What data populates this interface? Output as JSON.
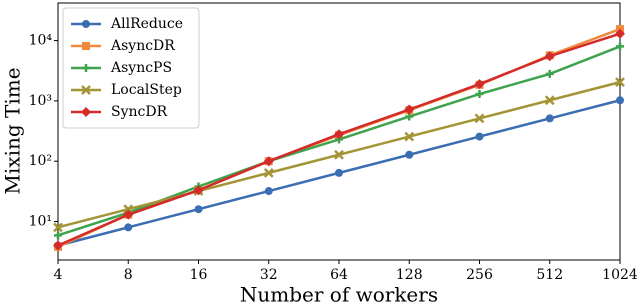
{
  "chart_data": {
    "type": "line",
    "x_label": "Number of workers",
    "y_label": "Mixing Time",
    "x": [
      4,
      8,
      16,
      32,
      64,
      128,
      256,
      512,
      1024
    ],
    "xlim": [
      4,
      1024
    ],
    "xticks": [
      4,
      8,
      16,
      32,
      64,
      128,
      256,
      512,
      1024
    ],
    "xscale": "log",
    "ylim": [
      2.3,
      42000
    ],
    "yscale": "log",
    "yticks": [
      {
        "value": 10,
        "label": "10¹"
      },
      {
        "value": 100,
        "label": "10²"
      },
      {
        "value": 1000,
        "label": "10³"
      },
      {
        "value": 10000,
        "label": "10⁴"
      }
    ],
    "legend": "upper left",
    "grid": false,
    "series": [
      {
        "name": "AllReduce",
        "color": "#3b6db3",
        "values": [
          4,
          8,
          16,
          32,
          64,
          128,
          256,
          512,
          1024
        ]
      },
      {
        "name": "AsyncDR",
        "color": "#f0893b",
        "values": [
          3.8,
          13,
          33,
          100,
          270,
          700,
          1850,
          5700,
          15500
        ]
      },
      {
        "name": "AsyncPS",
        "color": "#3fa34d",
        "values": [
          5.9,
          14,
          38,
          100,
          230,
          550,
          1300,
          2800,
          8000
        ]
      },
      {
        "name": "LocalStep",
        "color": "#a39535",
        "values": [
          8,
          16,
          32,
          64,
          128,
          256,
          512,
          1024,
          2048
        ]
      },
      {
        "name": "SyncDR",
        "color": "#d42a2a",
        "values": [
          4,
          13,
          33,
          100,
          280,
          720,
          1900,
          5500,
          13000
        ]
      }
    ]
  }
}
